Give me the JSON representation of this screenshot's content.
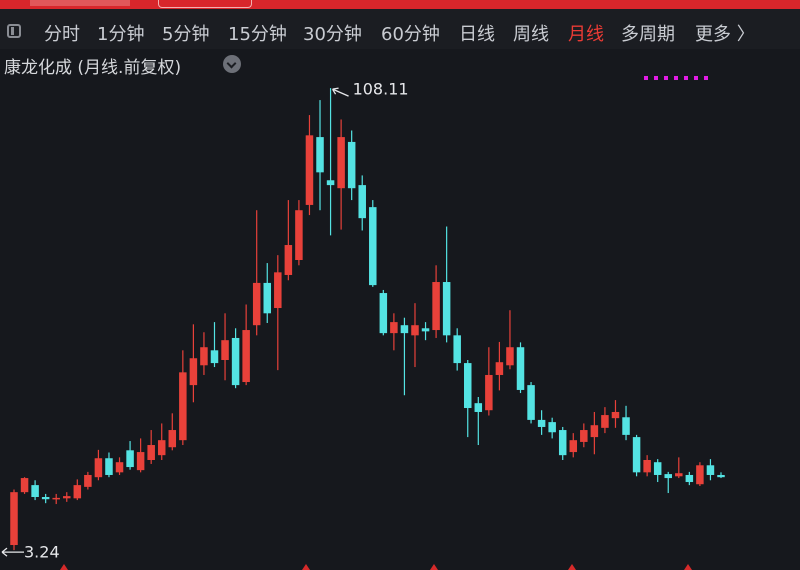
{
  "tabs": [
    {
      "label": "分时"
    },
    {
      "label": "1分钟"
    },
    {
      "label": "5分钟"
    },
    {
      "label": "15分钟"
    },
    {
      "label": "30分钟"
    },
    {
      "label": "60分钟"
    },
    {
      "label": "日线"
    },
    {
      "label": "周线"
    },
    {
      "label": "月线",
      "active": true
    },
    {
      "label": "多周期"
    },
    {
      "label": "更多 〉"
    }
  ],
  "stock_title": "康龙化成 (月线.前复权)",
  "chart_data": {
    "type": "candlestick",
    "up_color": "#e8413a",
    "down_color": "#54e3e3",
    "ylim": [
      1,
      114.5
    ],
    "annotations": [
      {
        "text": "108.11"
      },
      {
        "text": "3.24"
      }
    ],
    "open": [
      4.4,
      16.4,
      18.0,
      15.3,
      14.8,
      15.0,
      15.0,
      17.6,
      19.8,
      24.1,
      20.9,
      25.9,
      21.4,
      23.7,
      24.8,
      26.6,
      28.2,
      40.7,
      45.2,
      48.6,
      46.4,
      51.4,
      41.4,
      54.3,
      63.9,
      58.2,
      65.7,
      69.1,
      81.6,
      97.0,
      87.2,
      85.4,
      95.9,
      86.1,
      81.1,
      61.6,
      52.5,
      54.3,
      52.0,
      53.6,
      53.2,
      64.1,
      52.0,
      45.7,
      36.6,
      35.0,
      43.0,
      45.2,
      49.3,
      40.7,
      32.8,
      32.3,
      30.5,
      25.5,
      27.8,
      28.9,
      31.0,
      33.2,
      33.4,
      28.9,
      20.9,
      23.2,
      20.5,
      20.0,
      20.3,
      18.2,
      22.5,
      20.3
    ],
    "high": [
      17.0,
      19.8,
      19.1,
      16.0,
      16.0,
      16.4,
      19.3,
      21.0,
      26.0,
      25.4,
      24.3,
      28.0,
      28.6,
      30.5,
      32.0,
      34.3,
      48.6,
      54.5,
      52.7,
      55.0,
      57.0,
      53.6,
      59.0,
      80.4,
      68.4,
      70.2,
      82.7,
      82.7,
      102.0,
      105.4,
      108.11,
      101.0,
      98.5,
      88.3,
      82.7,
      62.3,
      57.0,
      56.0,
      59.3,
      55.0,
      67.9,
      76.7,
      53.6,
      46.4,
      38.0,
      49.3,
      50.5,
      57.7,
      50.4,
      41.4,
      35.0,
      33.3,
      31.2,
      29.8,
      32.0,
      34.6,
      35.7,
      37.3,
      36.0,
      29.4,
      24.8,
      23.9,
      21.0,
      24.3,
      21.0,
      23.2,
      23.9,
      20.9
    ],
    "low": [
      3.24,
      16.0,
      14.6,
      13.9,
      13.7,
      14.2,
      14.6,
      17.0,
      19.1,
      19.8,
      20.3,
      21.5,
      20.9,
      22.8,
      23.7,
      25.9,
      27.1,
      36.8,
      43.0,
      44.8,
      41.8,
      40.0,
      40.7,
      52.0,
      54.8,
      44.1,
      64.5,
      67.9,
      79.3,
      80.4,
      74.7,
      76.0,
      82.7,
      75.8,
      63.0,
      52.0,
      48.6,
      38.4,
      44.8,
      50.9,
      51.4,
      50.4,
      44.0,
      28.9,
      27.1,
      33.8,
      39.5,
      44.3,
      38.9,
      32.0,
      29.4,
      28.6,
      23.7,
      24.3,
      26.6,
      25.0,
      29.8,
      31.0,
      28.2,
      20.0,
      20.0,
      18.7,
      16.2,
      19.6,
      18.0,
      17.8,
      19.1,
      19.6
    ],
    "close": [
      16.4,
      19.6,
      15.3,
      14.8,
      15.1,
      15.5,
      18.0,
      20.3,
      24.1,
      20.3,
      23.2,
      22.1,
      25.5,
      27.1,
      28.2,
      30.5,
      43.6,
      46.8,
      49.3,
      45.7,
      50.9,
      40.7,
      53.2,
      63.9,
      57.0,
      66.3,
      72.5,
      80.4,
      97.4,
      89.0,
      86.1,
      97.0,
      85.4,
      78.6,
      63.4,
      52.5,
      55.0,
      52.5,
      54.3,
      52.9,
      64.1,
      52.0,
      45.7,
      35.5,
      34.6,
      43.0,
      45.9,
      49.3,
      39.6,
      32.8,
      31.2,
      30.0,
      24.8,
      28.2,
      30.5,
      31.6,
      33.9,
      34.6,
      29.4,
      20.9,
      23.7,
      20.3,
      19.6,
      20.7,
      18.7,
      22.5,
      20.3,
      19.8
    ]
  }
}
